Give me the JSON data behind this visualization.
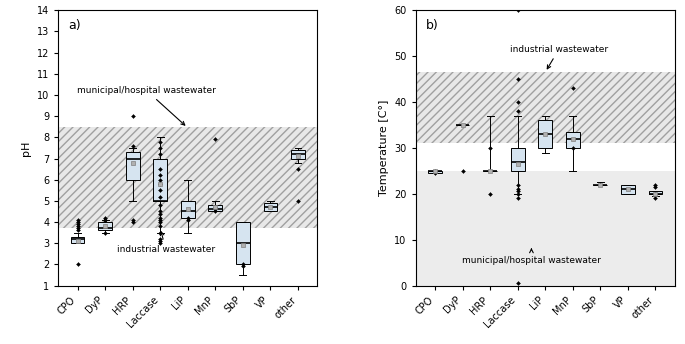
{
  "categories": [
    "CPO",
    "DyP",
    "HRP",
    "Laccase",
    "LiP",
    "MnP",
    "SbP",
    "VP",
    "other"
  ],
  "ph_boxes": {
    "CPO": {
      "whislo": 3.0,
      "q1": 3.0,
      "med": 3.2,
      "q3": 3.3,
      "whishi": 3.5,
      "mean": 3.1,
      "fliers": [
        2.0,
        3.6,
        3.7,
        3.8,
        3.9,
        4.0,
        4.1
      ]
    },
    "DyP": {
      "whislo": 3.5,
      "q1": 3.6,
      "med": 3.7,
      "q3": 4.0,
      "whishi": 4.1,
      "mean": 3.8,
      "fliers": [
        3.5,
        4.1,
        4.1,
        4.2
      ]
    },
    "HRP": {
      "whislo": 5.0,
      "q1": 6.0,
      "med": 7.0,
      "q3": 7.3,
      "whishi": 7.5,
      "mean": 6.8,
      "fliers": [
        4.0,
        4.1,
        7.6,
        9.0
      ]
    },
    "Laccase": {
      "whislo": 3.5,
      "q1": 5.0,
      "med": 5.0,
      "q3": 7.0,
      "whishi": 8.0,
      "mean": 5.8,
      "fliers": [
        3.0,
        3.1,
        3.2,
        3.5,
        3.8,
        4.0,
        4.1,
        4.2,
        4.4,
        4.5,
        4.8,
        5.2,
        5.5,
        5.8,
        6.0,
        6.2,
        6.5,
        7.2,
        7.5,
        7.8
      ]
    },
    "LiP": {
      "whislo": 3.5,
      "q1": 4.2,
      "med": 4.5,
      "q3": 5.0,
      "whishi": 6.0,
      "mean": 4.6,
      "fliers": [
        4.1,
        4.2
      ]
    },
    "MnP": {
      "whislo": 4.5,
      "q1": 4.5,
      "med": 4.6,
      "q3": 4.8,
      "whishi": 5.0,
      "mean": 4.7,
      "fliers": [
        7.9,
        4.5,
        4.6,
        4.7
      ]
    },
    "SbP": {
      "whislo": 1.5,
      "q1": 2.0,
      "med": 3.0,
      "q3": 4.0,
      "whishi": 4.0,
      "mean": 2.9,
      "fliers": [
        1.9,
        2.0
      ]
    },
    "VP": {
      "whislo": 4.5,
      "q1": 4.5,
      "med": 4.7,
      "q3": 4.9,
      "whishi": 5.0,
      "mean": 4.7,
      "fliers": []
    },
    "other": {
      "whislo": 6.8,
      "q1": 7.0,
      "med": 7.2,
      "q3": 7.4,
      "whishi": 7.5,
      "mean": 7.1,
      "fliers": [
        5.0,
        6.5
      ]
    }
  },
  "temp_boxes": {
    "CPO": {
      "whislo": 24.5,
      "q1": 24.5,
      "med": 25.0,
      "q3": 25.0,
      "whishi": 25.0,
      "mean": 25.0,
      "fliers": [
        24.5,
        25.0
      ]
    },
    "DyP": {
      "whislo": 35.0,
      "q1": 35.0,
      "med": 35.0,
      "q3": 35.0,
      "whishi": 35.0,
      "mean": 35.0,
      "fliers": [
        25.0
      ]
    },
    "HRP": {
      "whislo": 25.0,
      "q1": 25.0,
      "med": 25.0,
      "q3": 25.0,
      "whishi": 37.0,
      "mean": 25.0,
      "fliers": [
        20.0,
        30.0
      ]
    },
    "Laccase": {
      "whislo": 20.0,
      "q1": 25.0,
      "med": 27.0,
      "q3": 30.0,
      "whishi": 37.0,
      "mean": 26.5,
      "fliers": [
        0.5,
        19.0,
        20.0,
        20.5,
        21.0,
        22.0,
        38.0,
        40.0,
        45.0,
        60.0
      ]
    },
    "LiP": {
      "whislo": 29.0,
      "q1": 30.0,
      "med": 33.0,
      "q3": 36.0,
      "whishi": 37.0,
      "mean": 33.0,
      "fliers": []
    },
    "MnP": {
      "whislo": 25.0,
      "q1": 30.0,
      "med": 32.0,
      "q3": 33.5,
      "whishi": 37.0,
      "mean": 32.0,
      "fliers": [
        43.0,
        30.0
      ]
    },
    "SbP": {
      "whislo": 22.0,
      "q1": 22.0,
      "med": 22.0,
      "q3": 22.0,
      "whishi": 22.5,
      "mean": 22.0,
      "fliers": []
    },
    "VP": {
      "whislo": 20.0,
      "q1": 20.0,
      "med": 21.0,
      "q3": 22.0,
      "whishi": 22.0,
      "mean": 21.0,
      "fliers": []
    },
    "other": {
      "whislo": 19.5,
      "q1": 20.0,
      "med": 20.0,
      "q3": 20.5,
      "whishi": 20.5,
      "mean": 20.0,
      "fliers": [
        19.0,
        20.0,
        21.5,
        22.0
      ]
    }
  },
  "ph_band_lo": 3.7,
  "ph_band_hi": 8.5,
  "temp_muni_lo": 0.0,
  "temp_muni_hi": 25.0,
  "temp_indus_lo": 31.0,
  "temp_indus_hi": 46.5,
  "box_facecolor": "#d6e4f0",
  "box_edgecolor": "#000000",
  "median_color": "#000000",
  "whisker_color": "#000000",
  "mean_marker": "s",
  "mean_facecolor": "#b0b0b0",
  "mean_edgecolor": "#808080",
  "flier_marker": "D",
  "flier_color": "#000000",
  "hatch_pattern": "////",
  "hatch_facecolor": "#e8e8e8",
  "hatch_edgecolor": "#a0a0a0",
  "muni_gray": "#ececec",
  "panel_a_label": "a)",
  "panel_b_label": "b)",
  "ph_ylabel": "pH",
  "temp_ylabel": "Temperature [C°]",
  "ph_ylim": [
    1,
    14
  ],
  "temp_ylim": [
    0,
    60
  ],
  "ph_yticks": [
    1,
    2,
    3,
    4,
    5,
    6,
    7,
    8,
    9,
    10,
    11,
    12,
    13,
    14
  ],
  "temp_yticks": [
    0,
    10,
    20,
    30,
    40,
    50,
    60
  ],
  "ann_ph_muni_text": "municipal/hospital wastewater",
  "ann_ph_muni_textxy": [
    3.5,
    10.1
  ],
  "ann_ph_muni_arrowxy": [
    5.0,
    8.45
  ],
  "ann_ph_indus_text": "industrial wastewater",
  "ann_ph_indus_textxy": [
    4.2,
    2.6
  ],
  "ann_ph_indus_arrowxy": [
    4.0,
    3.72
  ],
  "ann_temp_indus_text": "industrial wastewater",
  "ann_temp_indus_textxy": [
    5.5,
    51.0
  ],
  "ann_temp_indus_arrowxy": [
    5.0,
    46.5
  ],
  "ann_temp_muni_text": "municipal/hospital wastewater",
  "ann_temp_muni_textxy": [
    4.5,
    5.0
  ],
  "ann_temp_muni_arrowxy": [
    4.5,
    8.2
  ]
}
